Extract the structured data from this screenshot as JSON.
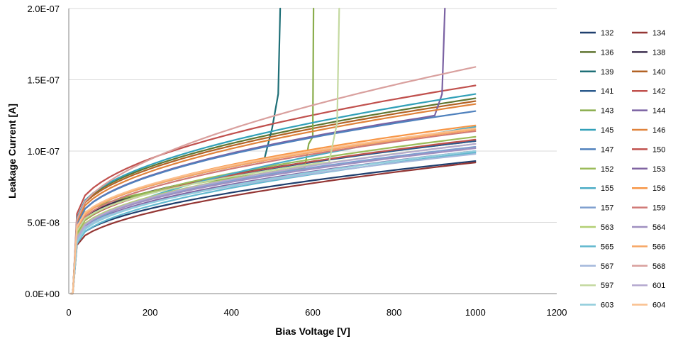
{
  "chart_data": {
    "type": "line",
    "title": "",
    "xlabel": "Bias Voltage  [V]",
    "ylabel": "Leakage Current  [A]",
    "xlim": [
      0,
      1200
    ],
    "ylim": [
      0,
      2e-07
    ],
    "x_ticks": [
      0,
      200,
      400,
      600,
      800,
      1000,
      1200
    ],
    "x_tick_labels": [
      "0",
      "200",
      "400",
      "600",
      "800",
      "1000",
      "1200"
    ],
    "y_ticks": [
      0,
      5e-08,
      1e-07,
      1.5e-07,
      2e-07
    ],
    "y_tick_labels": [
      "0.0E+00",
      "5.0E-08",
      "1.0E-07",
      "1.5E-07",
      "2.0E-07"
    ],
    "grid": "horizontal",
    "legend": "right",
    "series": [
      {
        "name": "132",
        "color": "#1f3f6e",
        "knee": 3.6e-08,
        "end": 9.3e-08,
        "p": 0.52
      },
      {
        "name": "134",
        "color": "#943634",
        "knee": 3.4e-08,
        "end": 9.2e-08,
        "p": 0.55
      },
      {
        "name": "136",
        "color": "#5f7530",
        "knee": 5.3e-08,
        "end": 1.37e-07,
        "p": 0.5
      },
      {
        "name": "138",
        "color": "#3f3151",
        "knee": 4.5e-08,
        "end": 1.07e-07,
        "p": 0.5
      },
      {
        "name": "139",
        "color": "#1e6f77",
        "knee": 4.6e-08,
        "end": 1.15e-07,
        "p": 0.5,
        "bx": 500,
        "by": 1.16e-07,
        "tail": [
          [
            515,
            1.4e-07
          ],
          [
            520,
            2e-07
          ]
        ]
      },
      {
        "name": "140",
        "color": "#b26224",
        "knee": 5.2e-08,
        "end": 1.35e-07,
        "p": 0.5
      },
      {
        "name": "141",
        "color": "#2a5a8c",
        "knee": 4.3e-08,
        "end": 1.07e-07,
        "p": 0.5
      },
      {
        "name": "142",
        "color": "#c0504d",
        "knee": 5.6e-08,
        "end": 1.46e-07,
        "p": 0.5
      },
      {
        "name": "143",
        "color": "#8aad4c",
        "knee": 5e-08,
        "end": 1e-07,
        "p": 0.5,
        "bx": 590,
        "by": 1.05e-07,
        "tail": [
          [
            600,
            1.1e-07
          ],
          [
            602,
            2e-07
          ]
        ]
      },
      {
        "name": "144",
        "color": "#7b62a3",
        "knee": 4.8e-08,
        "end": 1.29e-07,
        "p": 0.5,
        "bx": 900,
        "by": 1.25e-07,
        "tail": [
          [
            918,
            1.4e-07
          ],
          [
            925,
            2e-07
          ]
        ]
      },
      {
        "name": "145",
        "color": "#31a0b8",
        "knee": 5.3e-08,
        "end": 1.4e-07,
        "p": 0.5
      },
      {
        "name": "146",
        "color": "#e0823a",
        "knee": 5e-08,
        "end": 1.33e-07,
        "p": 0.5
      },
      {
        "name": "147",
        "color": "#4f81bd",
        "knee": 4.8e-08,
        "end": 1.28e-07,
        "p": 0.5
      },
      {
        "name": "150",
        "color": "#c0504d",
        "knee": 4.2e-08,
        "end": 1.08e-07,
        "p": 0.5
      },
      {
        "name": "152",
        "color": "#9bbb59",
        "knee": 4.2e-08,
        "end": 1.1e-07,
        "p": 0.5
      },
      {
        "name": "153",
        "color": "#8064a2",
        "knee": 3.8e-08,
        "end": 1e-07,
        "p": 0.5
      },
      {
        "name": "155",
        "color": "#4bacc6",
        "knee": 3.7e-08,
        "end": 1.17e-07,
        "p": 0.56
      },
      {
        "name": "156",
        "color": "#f79646",
        "knee": 4.5e-08,
        "end": 1.18e-07,
        "p": 0.5
      },
      {
        "name": "157",
        "color": "#7f9fcf",
        "knee": 4e-08,
        "end": 1.03e-07,
        "p": 0.5
      },
      {
        "name": "159",
        "color": "#d07a77",
        "knee": 4.4e-08,
        "end": 1.14e-07,
        "p": 0.5
      },
      {
        "name": "563",
        "color": "#b3cf73",
        "knee": 4e-08,
        "end": 1.05e-07,
        "p": 0.5
      },
      {
        "name": "564",
        "color": "#9f8fc0",
        "knee": 3.9e-08,
        "end": 1.02e-07,
        "p": 0.5
      },
      {
        "name": "565",
        "color": "#62b8cf",
        "knee": 3.5e-08,
        "end": 9.9e-08,
        "p": 0.52
      },
      {
        "name": "566",
        "color": "#f7a766",
        "knee": 4.6e-08,
        "end": 1.15e-07,
        "p": 0.5
      },
      {
        "name": "567",
        "color": "#a5b9dc",
        "knee": 3.8e-08,
        "end": 9.8e-08,
        "p": 0.5
      },
      {
        "name": "568",
        "color": "#d9a09e",
        "knee": 5.2e-08,
        "end": 1.59e-07,
        "p": 0.55
      },
      {
        "name": "597",
        "color": "#c4d9a0",
        "knee": 4.4e-08,
        "end": 1.05e-07,
        "p": 0.5,
        "bx": 640,
        "by": 9.2e-08,
        "tail": [
          [
            660,
            1.2e-07
          ],
          [
            665,
            2e-07
          ]
        ]
      },
      {
        "name": "601",
        "color": "#b5a9cf",
        "knee": 3.9e-08,
        "end": 1.05e-07,
        "p": 0.5
      },
      {
        "name": "603",
        "color": "#92cddc",
        "knee": 3.6e-08,
        "end": 1e-07,
        "p": 0.5
      },
      {
        "name": "604",
        "color": "#fac090",
        "knee": 4.7e-08,
        "end": 1.16e-07,
        "p": 0.5
      }
    ]
  }
}
